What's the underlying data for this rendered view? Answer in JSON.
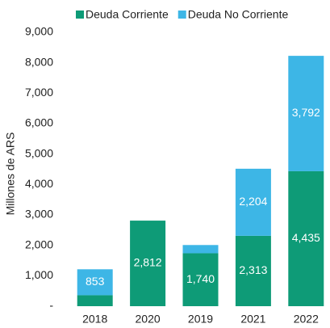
{
  "chart_data": {
    "type": "stacked_bar",
    "y_label": "Millones de ARS",
    "categories": [
      "2018",
      "2020",
      "2019",
      "2021",
      "2022"
    ],
    "series": [
      {
        "name": "Deuda Corriente",
        "color": "#0e9b77",
        "values": [
          360,
          2812,
          1740,
          2313,
          4435
        ],
        "value_labels": [
          null,
          "2,812",
          "1,740",
          "2,313",
          "4,435"
        ]
      },
      {
        "name": "Deuda No Corriente",
        "color": "#3db6e6",
        "values": [
          853,
          null,
          270,
          2204,
          3792
        ],
        "value_labels": [
          "853",
          null,
          null,
          "2,204",
          "3,792"
        ]
      }
    ],
    "ylim": [
      0,
      9000
    ],
    "yticks": [
      {
        "value": 0,
        "label": "-"
      },
      {
        "value": 1000,
        "label": "1,000"
      },
      {
        "value": 2000,
        "label": "2,000"
      },
      {
        "value": 3000,
        "label": "3,000"
      },
      {
        "value": 4000,
        "label": "4,000"
      },
      {
        "value": 5000,
        "label": "5,000"
      },
      {
        "value": 6000,
        "label": "6,000"
      },
      {
        "value": 7000,
        "label": "7,000"
      },
      {
        "value": 8000,
        "label": "8,000"
      },
      {
        "value": 9000,
        "label": "9,000"
      }
    ],
    "legend": "top"
  }
}
